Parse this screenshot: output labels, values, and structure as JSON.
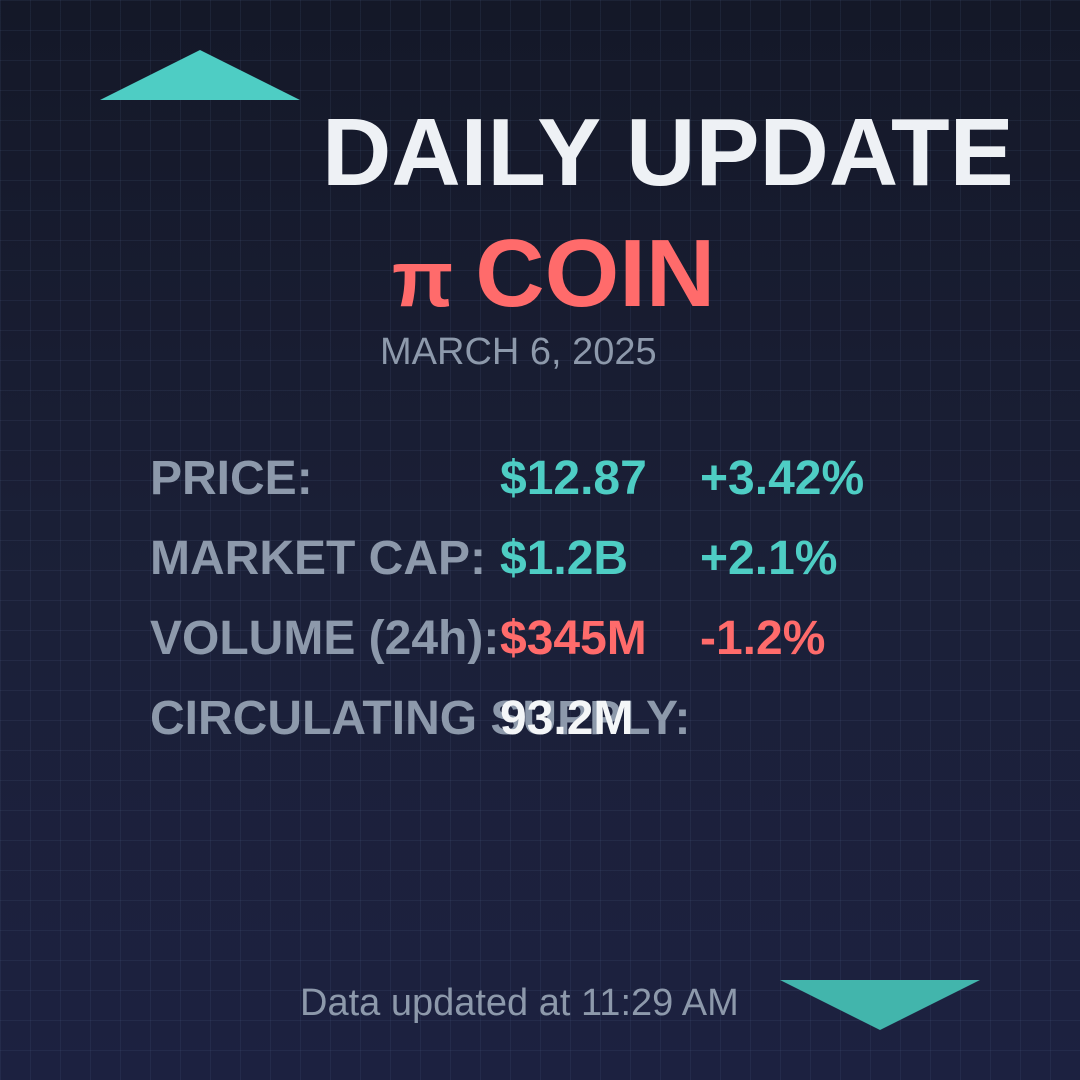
{
  "header": {
    "title": "DAILY UPDATE",
    "coin_symbol": "π",
    "coin_name": "COIN",
    "date": "MARCH 6, 2025"
  },
  "metrics": [
    {
      "label": "PRICE:",
      "value": "$12.87",
      "change": "+3.42%",
      "trend": "up"
    },
    {
      "label": "MARKET CAP:",
      "value": "$1.2B",
      "change": "+2.1%",
      "trend": "up"
    },
    {
      "label": "VOLUME (24h):",
      "value": "$345M",
      "change": "-1.2%",
      "trend": "down"
    },
    {
      "label": "CIRCULATING SUPPLY:",
      "value": "93.2M"
    }
  ],
  "footer": {
    "updated_text": "Data updated at 11:29 AM"
  },
  "decorations": {
    "top_triangle": "triangle-up-icon",
    "bottom_triangle": "triangle-down-icon"
  },
  "colors": {
    "accent_teal": "#4ecdc4",
    "accent_red": "#ff6b6b",
    "muted_text": "#8d99ab",
    "title_text": "#eef1f5",
    "background": "#1a1f38"
  }
}
